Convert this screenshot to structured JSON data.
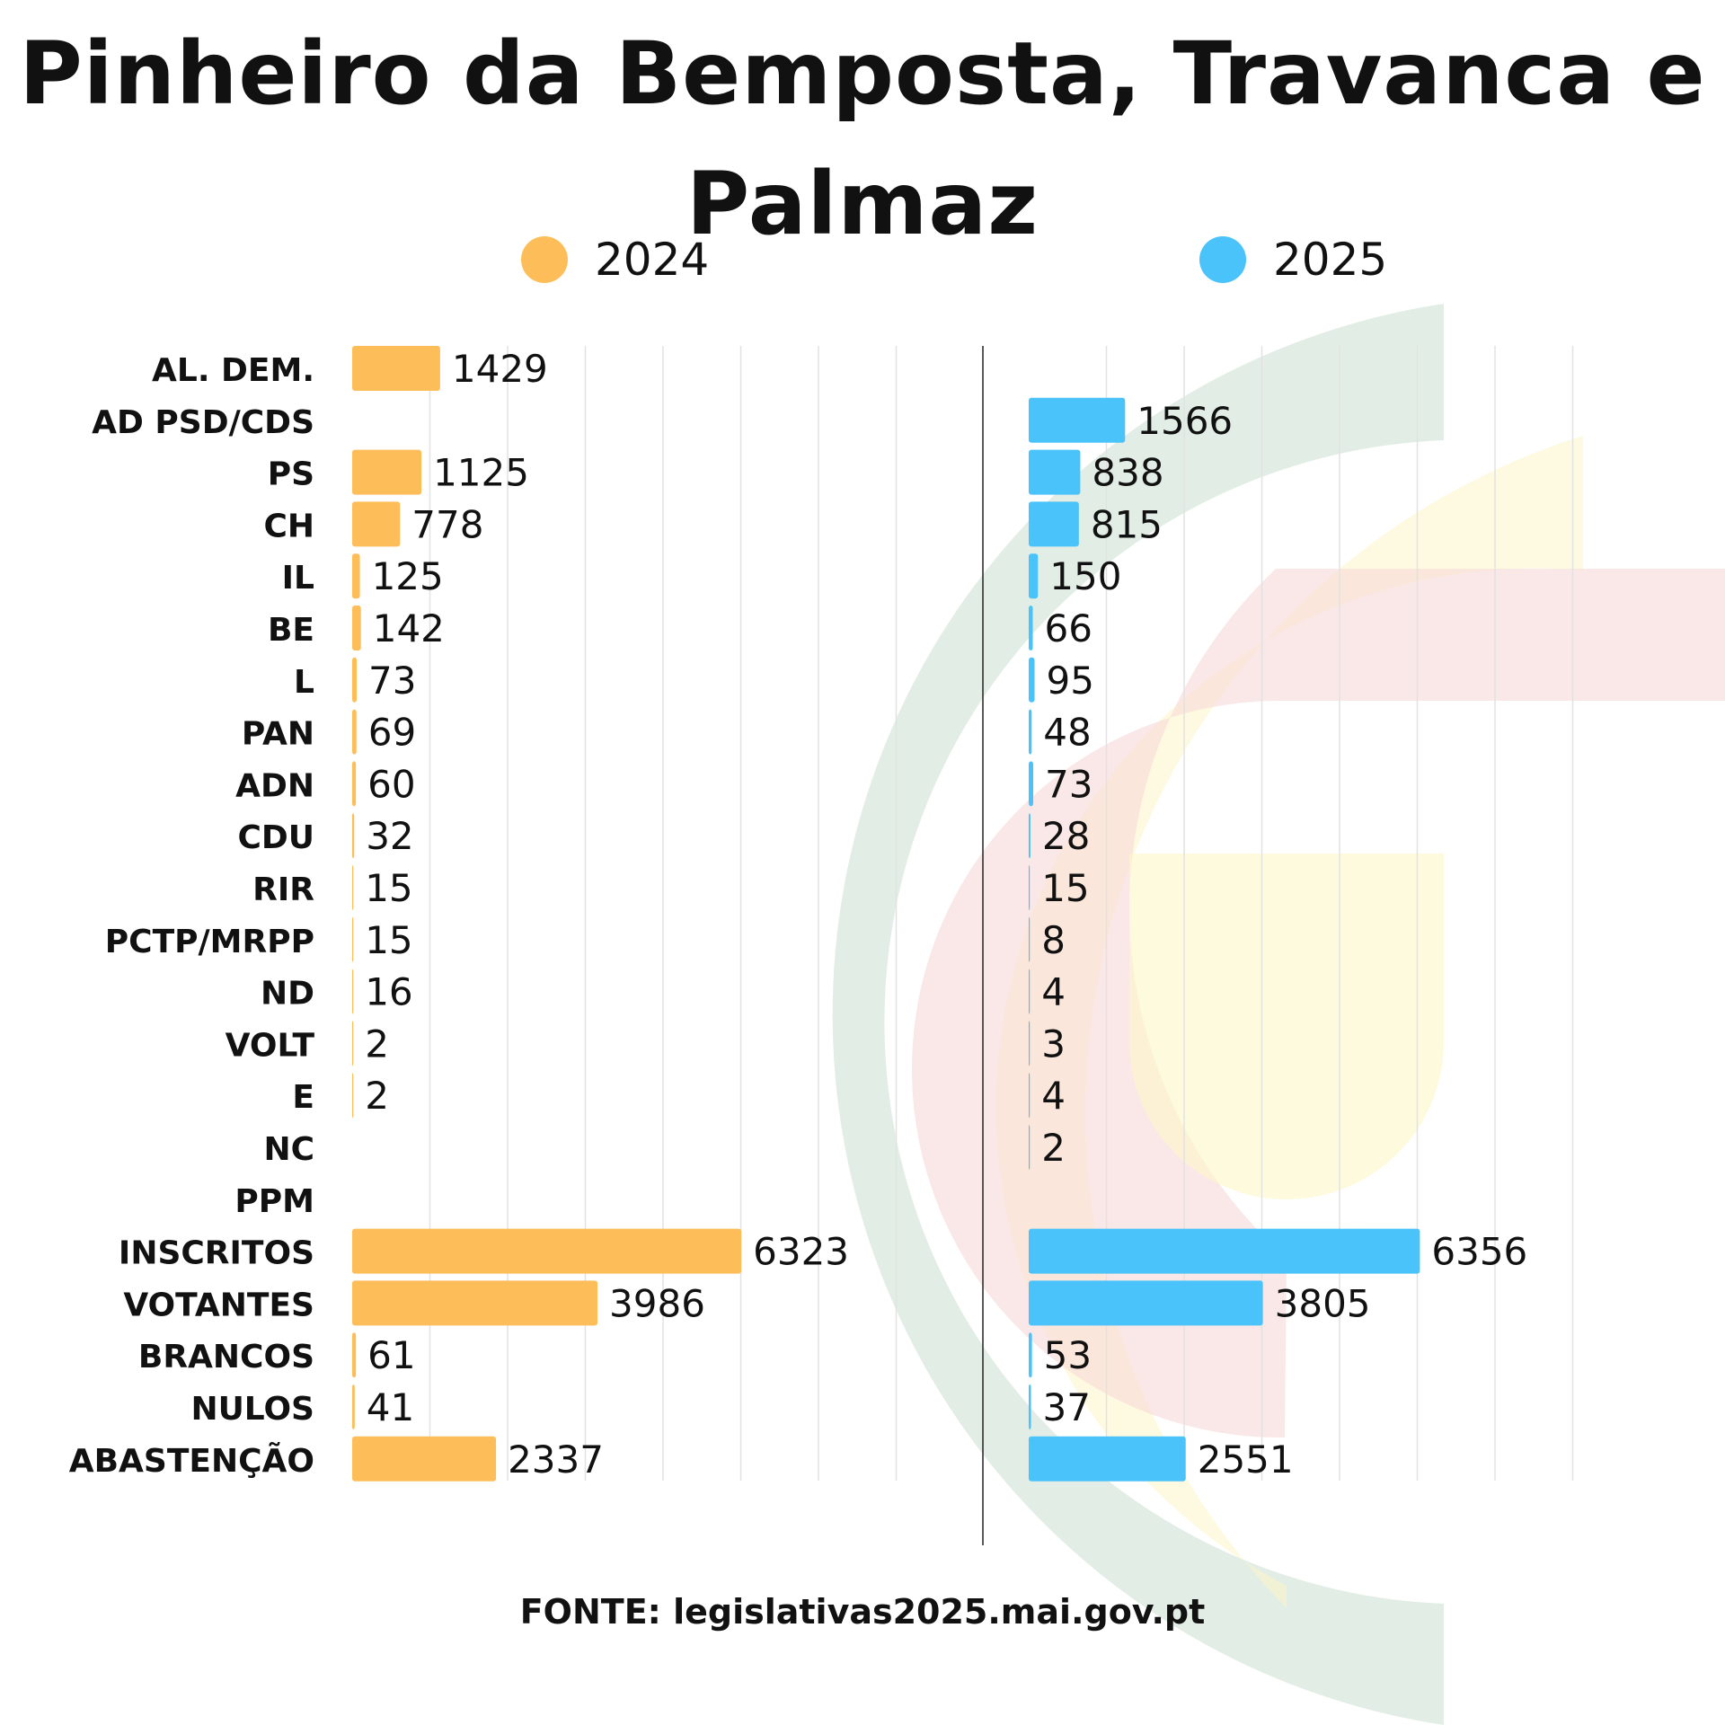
{
  "title": "Pinheiro da Bemposta, Travanca e Palmaz",
  "legend": [
    {
      "label": "2024",
      "color": "#FDBE5A"
    },
    {
      "label": "2025",
      "color": "#4AC3FA"
    }
  ],
  "source": "FONTE: legislativas2025.mai.gov.pt",
  "chart_data": {
    "type": "bar",
    "orientation": "horizontal",
    "categories": [
      "AL. DEM.",
      "AD PSD/CDS",
      "PS",
      "CH",
      "IL",
      "BE",
      "L",
      "PAN",
      "ADN",
      "CDU",
      "RIR",
      "PCTP/MRPP",
      "ND",
      "VOLT",
      "E",
      "NC",
      "PPM",
      "INSCRITOS",
      "VOTANTES",
      "BRANCOS",
      "NULOS",
      "ABASTENÇÃO"
    ],
    "series": [
      {
        "name": "2024",
        "color": "#FDBE5A",
        "values": [
          1429,
          null,
          1125,
          778,
          125,
          142,
          73,
          69,
          60,
          32,
          15,
          15,
          16,
          2,
          2,
          null,
          null,
          6323,
          3986,
          61,
          41,
          2337
        ]
      },
      {
        "name": "2025",
        "color": "#4AC3FA",
        "values": [
          null,
          1566,
          838,
          815,
          150,
          66,
          95,
          48,
          73,
          28,
          15,
          8,
          4,
          3,
          4,
          2,
          null,
          6356,
          3805,
          53,
          37,
          2551
        ]
      }
    ],
    "xlim": [
      0,
      8000
    ],
    "grid": true,
    "legend_position": "top"
  }
}
